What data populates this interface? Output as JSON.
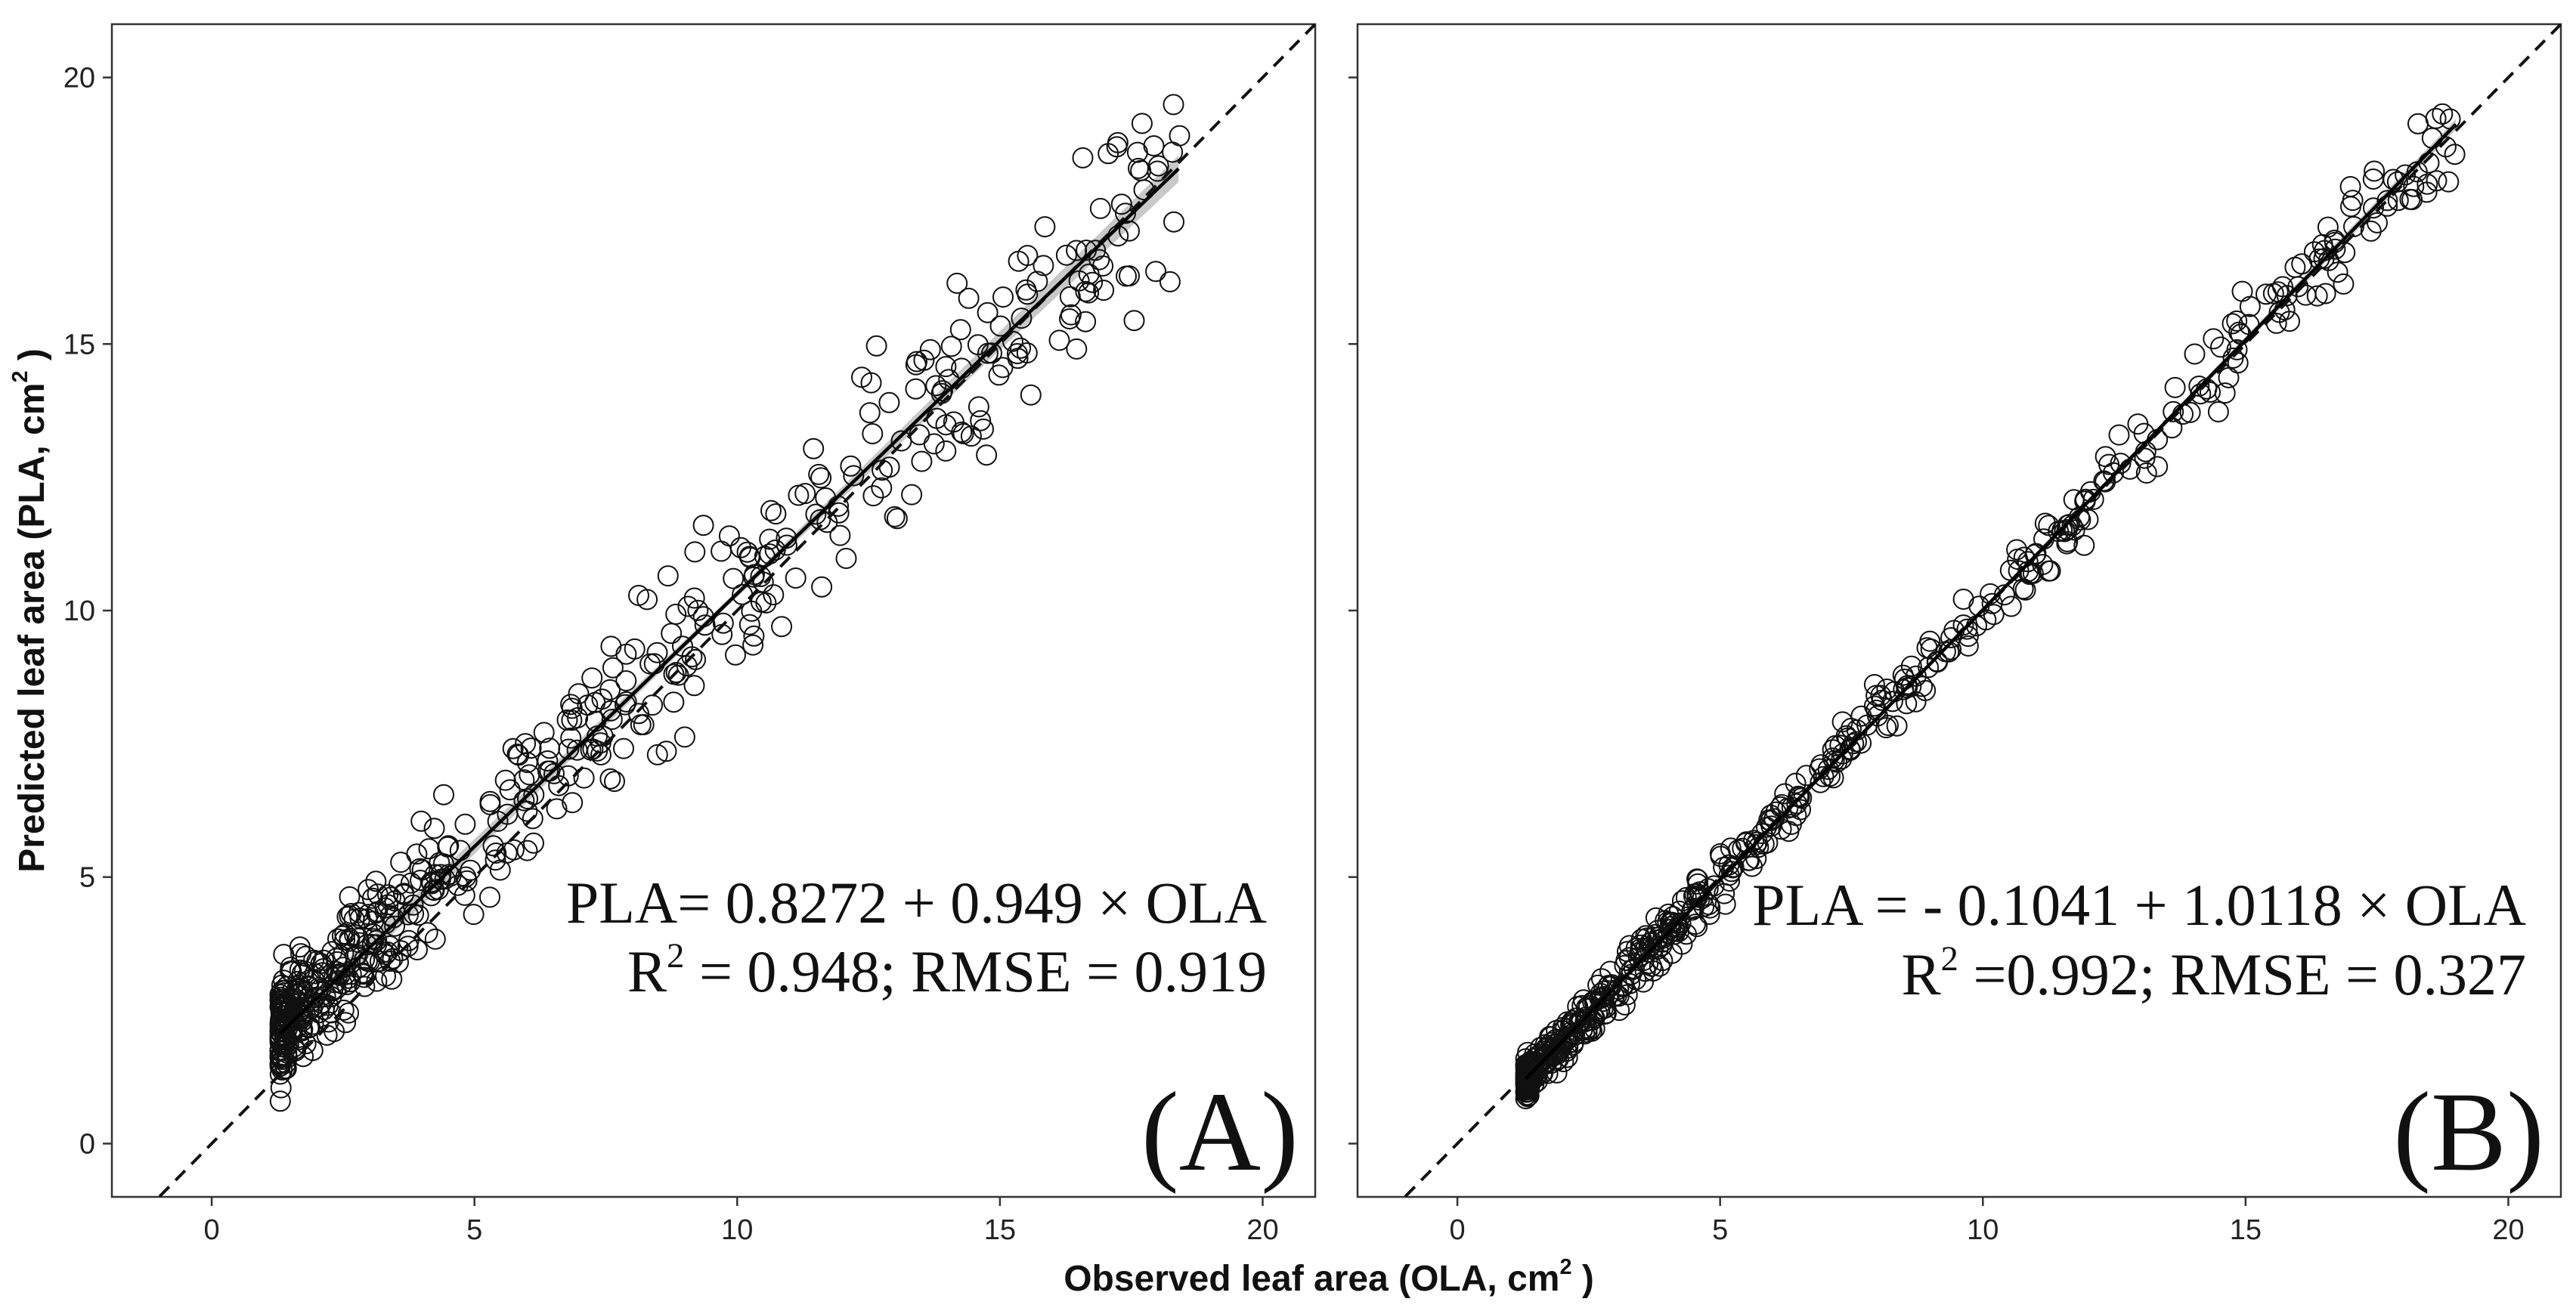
{
  "figure": {
    "x_axis_title": "Observed leaf area (OLA, cm",
    "x_axis_sup": "2",
    "x_axis_close": " )",
    "y_axis_title": "Predicted leaf area (PLA, cm",
    "y_axis_sup": "2",
    "y_axis_close": " )"
  },
  "chart_data": [
    {
      "type": "scatter",
      "panel_label": "(A)",
      "xlim": [
        -1.9,
        21
      ],
      "ylim": [
        -1,
        21
      ],
      "x_ticks": [
        0,
        5,
        10,
        15,
        20
      ],
      "y_ticks": [
        0,
        5,
        10,
        15,
        20
      ],
      "x_tick_labels": [
        "0",
        "5",
        "10",
        "15",
        "20"
      ],
      "y_tick_labels": [
        "0",
        "5",
        "10",
        "15",
        "20"
      ],
      "y_ticks_labeled": true,
      "fit": {
        "intercept": 0.8272,
        "slope": 0.949,
        "x_range": [
          1.3,
          18.4
        ],
        "ci_halfwidth": [
          0.2,
          0.06,
          0.25
        ]
      },
      "reference_line": {
        "type": "1:1",
        "style": "dashed"
      },
      "equation_line1": "PLA= 0.8272 + 0.949 × OLA",
      "equation_r2_prefix": "R",
      "equation_r2_sup": "2",
      "equation_line2_rest": " = 0.948; RMSE = 0.919",
      "points_generator": {
        "n": 560,
        "seed": 12345,
        "x_min": 1.3,
        "x_max": 18.5,
        "noise_sd": 0.75,
        "skew": 2.2
      }
    },
    {
      "type": "scatter",
      "panel_label": "(B)",
      "xlim": [
        -1.9,
        21
      ],
      "ylim": [
        -1,
        21
      ],
      "x_ticks": [
        0,
        5,
        10,
        15,
        20
      ],
      "y_ticks": [
        0,
        5,
        10,
        15,
        20
      ],
      "x_tick_labels": [
        "0",
        "5",
        "10",
        "15",
        "20"
      ],
      "y_tick_labels": [
        "",
        "",
        "",
        "",
        ""
      ],
      "y_ticks_labeled": false,
      "fit": {
        "intercept": -0.1041,
        "slope": 1.0118,
        "x_range": [
          1.3,
          19.0
        ],
        "ci_halfwidth": [
          0.08,
          0.03,
          0.1
        ]
      },
      "reference_line": {
        "type": "1:1",
        "style": "dashed"
      },
      "equation_line1": "PLA = - 0.1041 + 1.0118 × OLA",
      "equation_r2_prefix": "R",
      "equation_r2_sup": "2",
      "equation_line2_rest": " =0.992; RMSE = 0.327",
      "points_generator": {
        "n": 560,
        "seed": 67890,
        "x_min": 1.3,
        "x_max": 19.0,
        "noise_sd": 0.3,
        "skew": 2.2
      }
    }
  ]
}
